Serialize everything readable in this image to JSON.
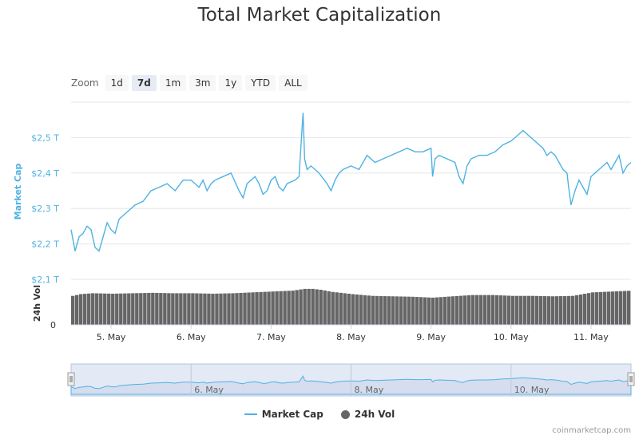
{
  "title": "Total Market Capitalization",
  "zoom": {
    "label": "Zoom",
    "buttons": [
      "1d",
      "7d",
      "1m",
      "3m",
      "1y",
      "YTD",
      "ALL"
    ],
    "active": "7d"
  },
  "colors": {
    "line": "#4fb2e3",
    "volume": "#666666",
    "navigator_fill": "#ccd6eb",
    "axis_label": "#4fb2e3"
  },
  "legend": {
    "market_cap": "Market Cap",
    "volume": "24h Vol"
  },
  "credits": "coinmarketcap.com",
  "chart_data": [
    {
      "type": "line",
      "ylabel": "Market Cap",
      "yticks": [
        "$2,1 T",
        "$2,2 T",
        "$2,3 T",
        "$2,4 T",
        "$2,5 T"
      ],
      "ylim": [
        2.1,
        2.6
      ],
      "xlim": [
        4.5,
        11.5
      ],
      "xticks": [
        "5. May",
        "6. May",
        "7. May",
        "8. May",
        "9. May",
        "10. May",
        "11. May"
      ],
      "series": [
        {
          "name": "Market Cap",
          "x": [
            4.5,
            4.55,
            4.6,
            4.65,
            4.7,
            4.75,
            4.8,
            4.85,
            4.9,
            4.95,
            5.0,
            5.05,
            5.1,
            5.2,
            5.3,
            5.4,
            5.5,
            5.6,
            5.7,
            5.8,
            5.9,
            6.0,
            6.05,
            6.1,
            6.15,
            6.2,
            6.25,
            6.3,
            6.4,
            6.5,
            6.6,
            6.65,
            6.7,
            6.75,
            6.8,
            6.85,
            6.9,
            6.95,
            7.0,
            7.05,
            7.1,
            7.15,
            7.2,
            7.3,
            7.35,
            7.4,
            7.42,
            7.45,
            7.5,
            7.6,
            7.7,
            7.75,
            7.8,
            7.85,
            7.9,
            8.0,
            8.1,
            8.2,
            8.3,
            8.4,
            8.5,
            8.6,
            8.7,
            8.8,
            8.9,
            9.0,
            9.02,
            9.05,
            9.1,
            9.2,
            9.3,
            9.35,
            9.4,
            9.45,
            9.5,
            9.6,
            9.7,
            9.8,
            9.9,
            10.0,
            10.1,
            10.15,
            10.2,
            10.3,
            10.4,
            10.45,
            10.5,
            10.55,
            10.6,
            10.65,
            10.7,
            10.72,
            10.75,
            10.8,
            10.85,
            10.9,
            10.95,
            11.0,
            11.05,
            11.1,
            11.15,
            11.2,
            11.25,
            11.3,
            11.35,
            11.4,
            11.45,
            11.5
          ],
          "values": [
            2.24,
            2.18,
            2.22,
            2.23,
            2.25,
            2.24,
            2.19,
            2.18,
            2.22,
            2.26,
            2.24,
            2.23,
            2.27,
            2.29,
            2.31,
            2.32,
            2.35,
            2.36,
            2.37,
            2.35,
            2.38,
            2.38,
            2.37,
            2.36,
            2.38,
            2.35,
            2.37,
            2.38,
            2.39,
            2.4,
            2.35,
            2.33,
            2.37,
            2.38,
            2.39,
            2.37,
            2.34,
            2.35,
            2.38,
            2.39,
            2.36,
            2.35,
            2.37,
            2.38,
            2.39,
            2.57,
            2.44,
            2.41,
            2.42,
            2.4,
            2.37,
            2.35,
            2.38,
            2.4,
            2.41,
            2.42,
            2.41,
            2.45,
            2.43,
            2.44,
            2.45,
            2.46,
            2.47,
            2.46,
            2.46,
            2.47,
            2.39,
            2.44,
            2.45,
            2.44,
            2.43,
            2.39,
            2.37,
            2.42,
            2.44,
            2.45,
            2.45,
            2.46,
            2.48,
            2.49,
            2.51,
            2.52,
            2.51,
            2.49,
            2.47,
            2.45,
            2.46,
            2.45,
            2.43,
            2.41,
            2.4,
            2.36,
            2.31,
            2.35,
            2.38,
            2.36,
            2.34,
            2.39,
            2.4,
            2.41,
            2.42,
            2.43,
            2.41,
            2.43,
            2.45,
            2.4,
            2.42,
            2.43
          ]
        }
      ]
    },
    {
      "type": "bar",
      "ylabel": "24h Vol",
      "yticks": [
        "0"
      ],
      "series": [
        {
          "name": "24h Vol",
          "x": [
            4.5,
            4.6,
            4.75,
            5.0,
            5.25,
            5.5,
            5.75,
            6.0,
            6.25,
            6.5,
            6.75,
            7.0,
            7.25,
            7.4,
            7.5,
            7.6,
            7.75,
            8.0,
            8.25,
            8.5,
            8.75,
            9.0,
            9.25,
            9.5,
            9.75,
            10.0,
            10.25,
            10.5,
            10.75,
            11.0,
            11.25,
            11.5
          ],
          "values": [
            0.66,
            0.7,
            0.72,
            0.71,
            0.72,
            0.73,
            0.72,
            0.72,
            0.71,
            0.72,
            0.74,
            0.76,
            0.78,
            0.82,
            0.82,
            0.8,
            0.75,
            0.7,
            0.66,
            0.65,
            0.64,
            0.62,
            0.65,
            0.68,
            0.68,
            0.66,
            0.66,
            0.65,
            0.66,
            0.74,
            0.76,
            0.78
          ]
        }
      ]
    },
    {
      "type": "area",
      "role": "navigator",
      "xticks": [
        "6. May",
        "8. May",
        "10. May"
      ]
    }
  ]
}
